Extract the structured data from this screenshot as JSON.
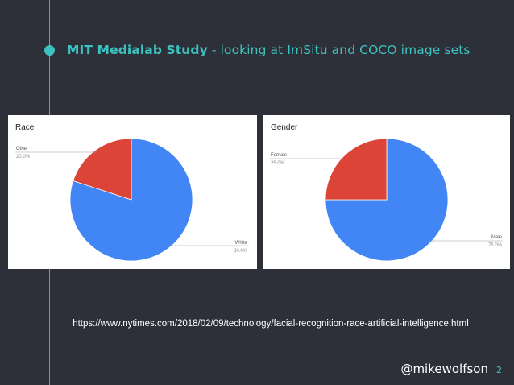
{
  "slide": {
    "title_bold": "MIT Medialab Study",
    "title_rest": " - looking at ImSitu and COCO image sets",
    "url": "https://www.nytimes.com/2018/02/09/technology/facial-recognition-race-artificial-intelligence.html",
    "handle": "@mikewolfson",
    "page_number": "2",
    "accent_color": "#3cc3c1",
    "background_color": "#2d3038"
  },
  "chart_data": [
    {
      "type": "pie",
      "title": "Race",
      "slices": [
        {
          "label": "White",
          "value": 80.0,
          "value_label": "80.0%",
          "color": "#4285f4"
        },
        {
          "label": "Other",
          "value": 20.0,
          "value_label": "20.0%",
          "color": "#db4437"
        }
      ]
    },
    {
      "type": "pie",
      "title": "Gender",
      "slices": [
        {
          "label": "Male",
          "value": 75.0,
          "value_label": "75.0%",
          "color": "#4285f4"
        },
        {
          "label": "Female",
          "value": 25.0,
          "value_label": "25.0%",
          "color": "#db4437"
        }
      ]
    }
  ]
}
